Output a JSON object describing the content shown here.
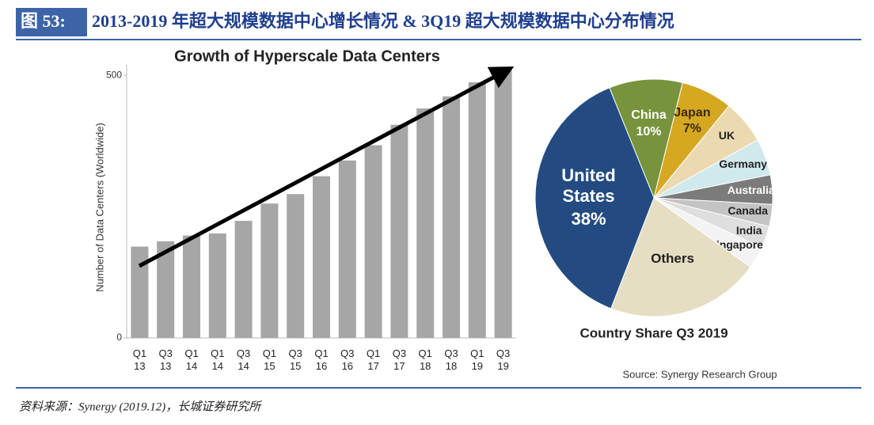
{
  "header": {
    "label": "图 53:",
    "title": "2013-2019 年超大规模数据中心增长情况  & 3Q19 超大规模数据中心分布情况"
  },
  "chart_data": [
    {
      "type": "bar",
      "title": "Growth of Hyperscale Data Centers",
      "y_label": "Number of Data Centers (Worldwide)",
      "categories": [
        "Q1 13",
        "Q3 13",
        "Q1 14",
        "Q1 14",
        "Q3 14",
        "Q1 15",
        "Q3 15",
        "Q1 16",
        "Q3 16",
        "Q1 17",
        "Q3 17",
        "Q1 18",
        "Q3 18",
        "Q1 19",
        "Q3 19"
      ],
      "values": [
        174,
        184,
        195,
        199,
        223,
        256,
        274,
        308,
        338,
        367,
        406,
        437,
        460,
        487,
        516
      ],
      "color": "#a6a6a6",
      "ylim": [
        0,
        520
      ],
      "yticks": [
        0,
        500
      ]
    },
    {
      "type": "pie",
      "title": "Country Share Q3 2019",
      "source": "Source: Synergy Research Group",
      "categories": [
        "China",
        "Japan",
        "UK",
        "Germany",
        "Australia",
        "Canada",
        "India",
        "Singapore",
        "Others",
        "United States"
      ],
      "values": [
        10,
        7,
        6,
        5,
        4,
        3,
        3,
        3,
        21,
        38
      ],
      "value_labels": [
        "10%",
        "7%",
        null,
        null,
        null,
        null,
        null,
        null,
        null,
        "38%"
      ],
      "colors": [
        "#77933c",
        "#d6a821",
        "#ecd9b0",
        "#cfe9ec",
        "#7b7b7b",
        "#c4c4c4",
        "#dedede",
        "#f3f3f3",
        "#e5dec3",
        "#234b82"
      ]
    }
  ],
  "footer": "资料来源：Synergy (2019.12)，长城证券研究所"
}
